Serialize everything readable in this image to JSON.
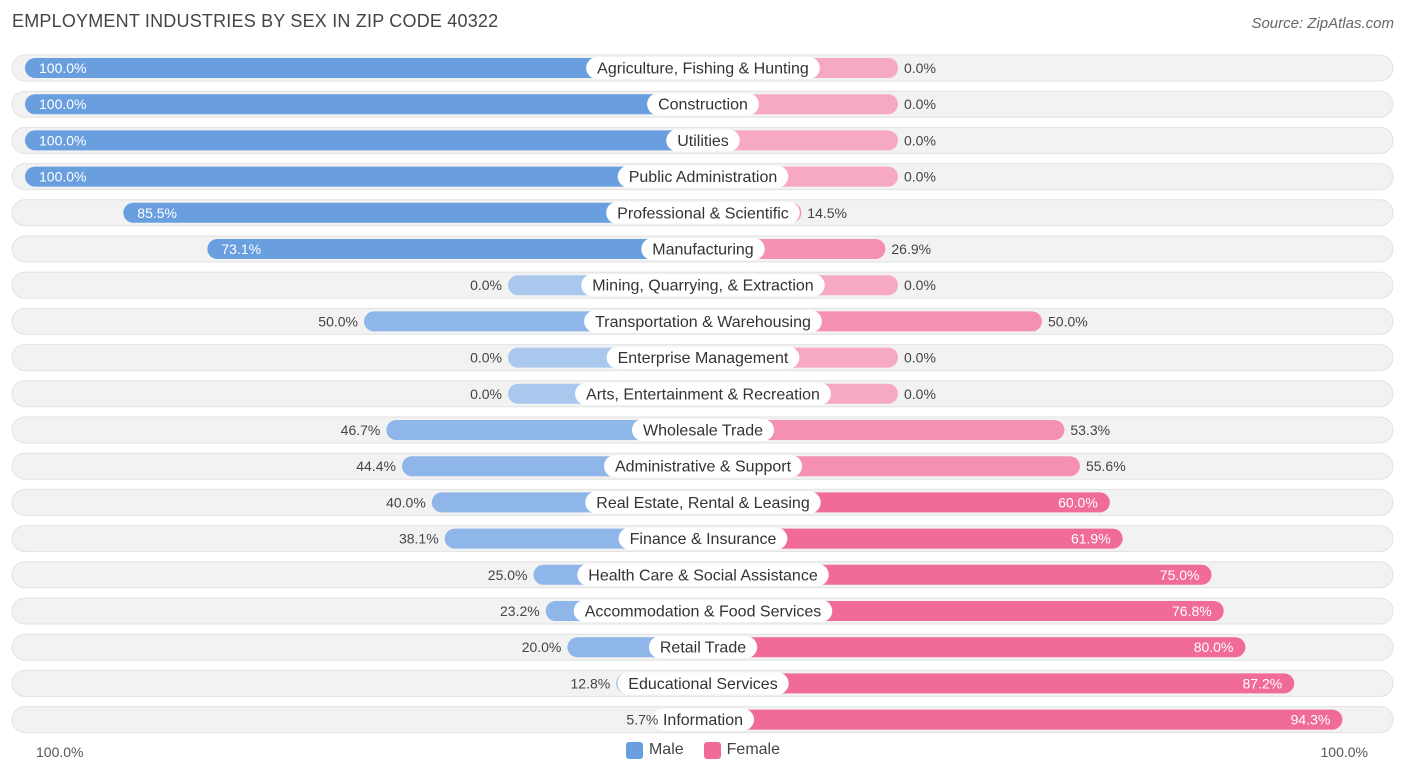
{
  "title": "EMPLOYMENT INDUSTRIES BY SEX IN ZIP CODE 40322",
  "source": "Source: ZipAtlas.com",
  "colors": {
    "male": "#6a9fdf",
    "female": "#f06b97",
    "male_light": "#aac8ee",
    "female_light": "#f7a9c3",
    "track": "#efefef"
  },
  "legend": {
    "male": "Male",
    "female": "Female"
  },
  "axis": {
    "left": "100.0%",
    "right": "100.0%"
  },
  "chart_data": {
    "type": "bar",
    "orientation": "horizontal-diverging",
    "title": "EMPLOYMENT INDUSTRIES BY SEX IN ZIP CODE 40322",
    "xlim": [
      -100,
      100
    ],
    "categories": [
      "Agriculture, Fishing & Hunting",
      "Construction",
      "Utilities",
      "Public Administration",
      "Professional & Scientific",
      "Manufacturing",
      "Mining, Quarrying, & Extraction",
      "Transportation & Warehousing",
      "Enterprise Management",
      "Arts, Entertainment & Recreation",
      "Wholesale Trade",
      "Administrative & Support",
      "Real Estate, Rental & Leasing",
      "Finance & Insurance",
      "Health Care & Social Assistance",
      "Accommodation & Food Services",
      "Retail Trade",
      "Educational Services",
      "Information"
    ],
    "series": [
      {
        "name": "Male",
        "values": [
          100.0,
          100.0,
          100.0,
          100.0,
          85.5,
          73.1,
          0.0,
          50.0,
          0.0,
          0.0,
          46.7,
          44.4,
          40.0,
          38.1,
          25.0,
          23.2,
          20.0,
          12.8,
          5.7
        ]
      },
      {
        "name": "Female",
        "values": [
          0.0,
          0.0,
          0.0,
          0.0,
          14.5,
          26.9,
          0.0,
          50.0,
          0.0,
          0.0,
          53.3,
          55.6,
          60.0,
          61.9,
          75.0,
          76.8,
          80.0,
          87.2,
          94.3
        ]
      }
    ],
    "male_labels": [
      "100.0%",
      "100.0%",
      "100.0%",
      "100.0%",
      "85.5%",
      "73.1%",
      "0.0%",
      "50.0%",
      "0.0%",
      "0.0%",
      "46.7%",
      "44.4%",
      "40.0%",
      "38.1%",
      "25.0%",
      "23.2%",
      "20.0%",
      "12.8%",
      "5.7%"
    ],
    "female_labels": [
      "0.0%",
      "0.0%",
      "0.0%",
      "0.0%",
      "14.5%",
      "26.9%",
      "0.0%",
      "50.0%",
      "0.0%",
      "0.0%",
      "53.3%",
      "55.6%",
      "60.0%",
      "61.9%",
      "75.0%",
      "76.8%",
      "80.0%",
      "87.2%",
      "94.3%"
    ],
    "legend_position": "bottom-center"
  }
}
